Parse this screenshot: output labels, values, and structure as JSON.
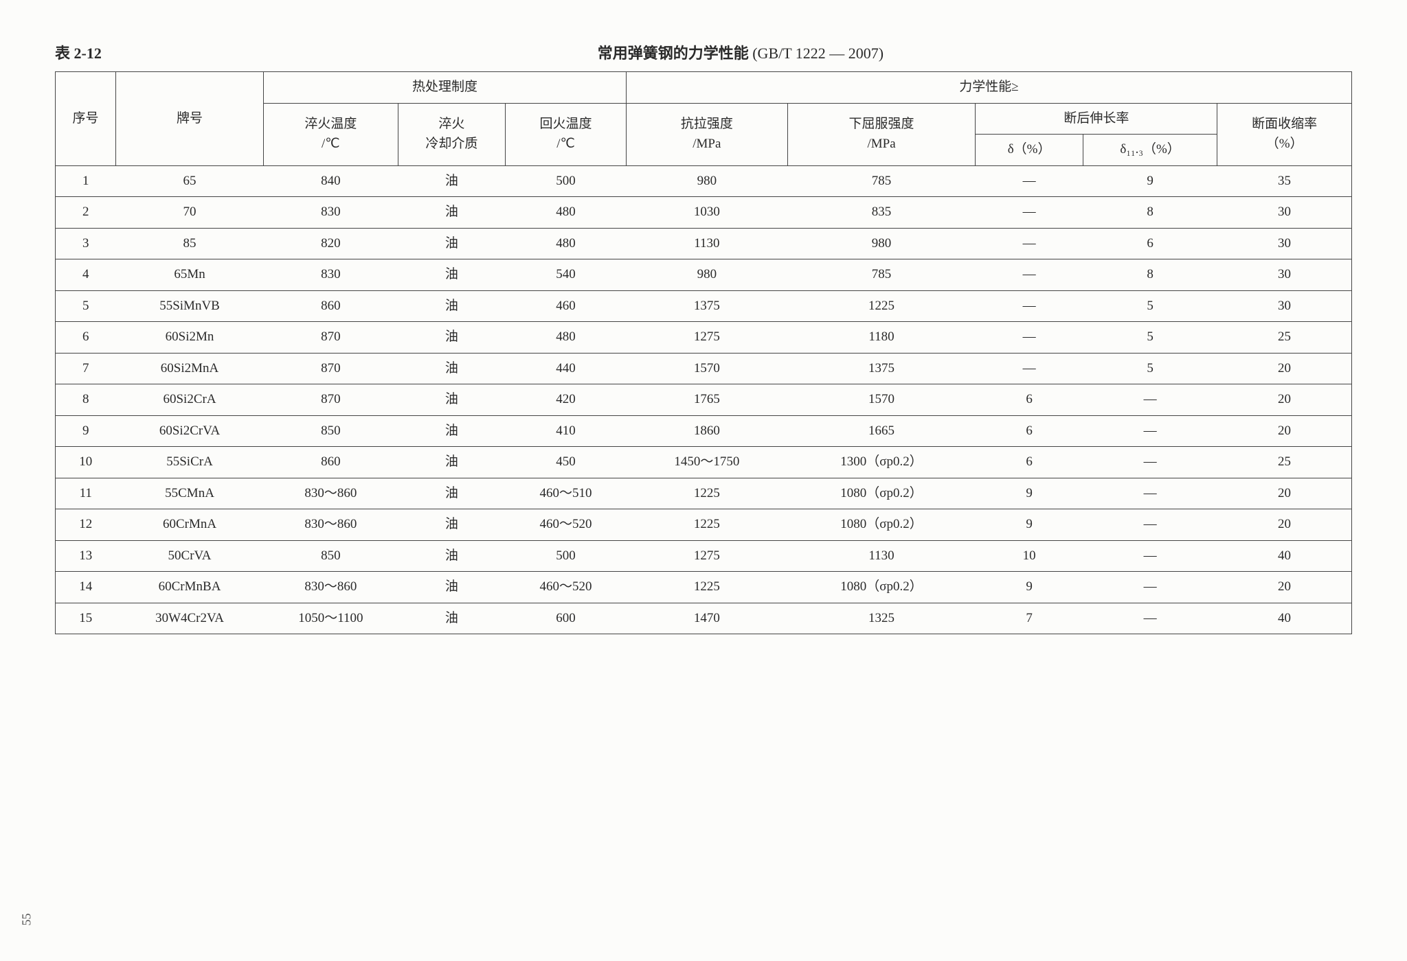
{
  "caption": {
    "label": "表 2-12",
    "title_main": "常用弹簧钢的力学性能",
    "title_std": " (GB/T 1222 — 2007)"
  },
  "headers": {
    "seq": "序号",
    "grade": "牌号",
    "heat_treat": "热处理制度",
    "quench_temp": "淬火温度\n/℃",
    "quench_medium": "淬火\n冷却介质",
    "temper_temp": "回火温度\n/℃",
    "mech_props": "力学性能≥",
    "tensile": "抗拉强度\n/MPa",
    "yield": "下屈服强度\n/MPa",
    "elong_group": "断后伸长率",
    "delta": "δ（%）",
    "delta113": "δ₁₁.₃（%）",
    "area_red": "断面收缩率\n（%）"
  },
  "rows": [
    {
      "seq": "1",
      "grade": "65",
      "qtemp": "840",
      "qmed": "油",
      "ttemp": "500",
      "tens": "980",
      "yield": "785",
      "d": "—",
      "d11": "9",
      "area": "35"
    },
    {
      "seq": "2",
      "grade": "70",
      "qtemp": "830",
      "qmed": "油",
      "ttemp": "480",
      "tens": "1030",
      "yield": "835",
      "d": "—",
      "d11": "8",
      "area": "30"
    },
    {
      "seq": "3",
      "grade": "85",
      "qtemp": "820",
      "qmed": "油",
      "ttemp": "480",
      "tens": "1130",
      "yield": "980",
      "d": "—",
      "d11": "6",
      "area": "30"
    },
    {
      "seq": "4",
      "grade": "65Mn",
      "qtemp": "830",
      "qmed": "油",
      "ttemp": "540",
      "tens": "980",
      "yield": "785",
      "d": "—",
      "d11": "8",
      "area": "30"
    },
    {
      "seq": "5",
      "grade": "55SiMnVB",
      "qtemp": "860",
      "qmed": "油",
      "ttemp": "460",
      "tens": "1375",
      "yield": "1225",
      "d": "—",
      "d11": "5",
      "area": "30"
    },
    {
      "seq": "6",
      "grade": "60Si2Mn",
      "qtemp": "870",
      "qmed": "油",
      "ttemp": "480",
      "tens": "1275",
      "yield": "1180",
      "d": "—",
      "d11": "5",
      "area": "25"
    },
    {
      "seq": "7",
      "grade": "60Si2MnA",
      "qtemp": "870",
      "qmed": "油",
      "ttemp": "440",
      "tens": "1570",
      "yield": "1375",
      "d": "—",
      "d11": "5",
      "area": "20"
    },
    {
      "seq": "8",
      "grade": "60Si2CrA",
      "qtemp": "870",
      "qmed": "油",
      "ttemp": "420",
      "tens": "1765",
      "yield": "1570",
      "d": "6",
      "d11": "—",
      "area": "20"
    },
    {
      "seq": "9",
      "grade": "60Si2CrVA",
      "qtemp": "850",
      "qmed": "油",
      "ttemp": "410",
      "tens": "1860",
      "yield": "1665",
      "d": "6",
      "d11": "—",
      "area": "20"
    },
    {
      "seq": "10",
      "grade": "55SiCrA",
      "qtemp": "860",
      "qmed": "油",
      "ttemp": "450",
      "tens": "1450～1750",
      "yield": "1300（σp0.2）",
      "d": "6",
      "d11": "—",
      "area": "25"
    },
    {
      "seq": "11",
      "grade": "55CMnA",
      "qtemp": "830～860",
      "qmed": "油",
      "ttemp": "460～510",
      "tens": "1225",
      "yield": "1080（σp0.2）",
      "d": "9",
      "d11": "—",
      "area": "20"
    },
    {
      "seq": "12",
      "grade": "60CrMnA",
      "qtemp": "830～860",
      "qmed": "油",
      "ttemp": "460～520",
      "tens": "1225",
      "yield": "1080（σp0.2）",
      "d": "9",
      "d11": "—",
      "area": "20"
    },
    {
      "seq": "13",
      "grade": "50CrVA",
      "qtemp": "850",
      "qmed": "油",
      "ttemp": "500",
      "tens": "1275",
      "yield": "1130",
      "d": "10",
      "d11": "—",
      "area": "40"
    },
    {
      "seq": "14",
      "grade": "60CrMnBA",
      "qtemp": "830～860",
      "qmed": "油",
      "ttemp": "460～520",
      "tens": "1225",
      "yield": "1080（σp0.2）",
      "d": "9",
      "d11": "—",
      "area": "20"
    },
    {
      "seq": "15",
      "grade": "30W4Cr2VA",
      "qtemp": "1050～1100",
      "qmed": "油",
      "ttemp": "600",
      "tens": "1470",
      "yield": "1325",
      "d": "7",
      "d11": "—",
      "area": "40"
    }
  ],
  "page_number": "55",
  "style": {
    "bg": "#fcfcfa",
    "border": "#444444",
    "text": "#2a2a2a",
    "font_body": 19,
    "font_title": 22
  }
}
